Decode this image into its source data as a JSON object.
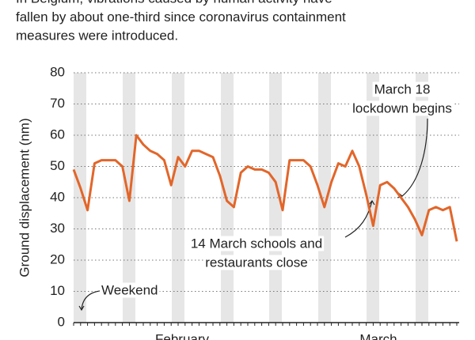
{
  "chart_data": {
    "type": "line",
    "subtitle_lines": [
      "In Belgium, vibrations caused by human activity have",
      "fallen by about one-third since coronavirus containment",
      "measures were introduced."
    ],
    "y_label": "Ground displacement (nm)",
    "x_labels": [
      "February",
      "March"
    ],
    "series": [
      {
        "name": "Ground displacement",
        "color": "#e2662a",
        "values": [
          49,
          43,
          36,
          51,
          52,
          52,
          52,
          50,
          39,
          60,
          57,
          55,
          54,
          52,
          44,
          53,
          50,
          55,
          55,
          54,
          53,
          47,
          39,
          37,
          48,
          50,
          49,
          49,
          48,
          45,
          36,
          52,
          52,
          52,
          50,
          44,
          37,
          45,
          51,
          50,
          55,
          50,
          41,
          31,
          44,
          45,
          43,
          40,
          37,
          33,
          28,
          36,
          37,
          36,
          37,
          26
        ]
      }
    ],
    "ylim": [
      0,
      80
    ],
    "yticks": [
      0,
      10,
      20,
      30,
      40,
      50,
      60,
      70,
      80
    ],
    "grid": true,
    "annotations": [
      {
        "lines": [
          "March 18",
          "lockdown begins"
        ]
      },
      {
        "lines": [
          "14 March schools and",
          "restaurants close"
        ]
      },
      {
        "lines": [
          "Weekend"
        ]
      }
    ]
  }
}
